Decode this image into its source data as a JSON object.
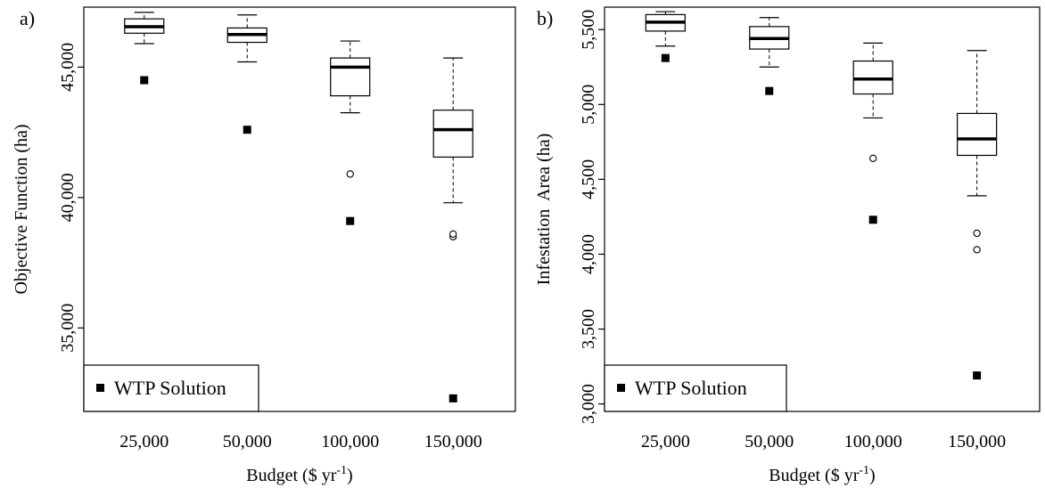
{
  "chart_data": [
    {
      "type": "box",
      "panel_label": "a)",
      "xlabel": "Budget ($ yr",
      "xlabel_sup": "-1",
      "xlabel_close": ")",
      "ylabel": "Objective Function (ha)",
      "categories": [
        "25,000",
        "50,000",
        "100,000",
        "150,000"
      ],
      "ylim": [
        31800,
        47300
      ],
      "yticks": [
        35000,
        40000,
        45000
      ],
      "ytick_labels": [
        "35,000",
        "40,000",
        "45,000"
      ],
      "boxes": [
        {
          "whisker_low": 45900,
          "q1": 46300,
          "median": 46550,
          "q3": 46850,
          "whisker_high": 47100,
          "outliers": []
        },
        {
          "whisker_low": 45200,
          "q1": 45950,
          "median": 46250,
          "q3": 46500,
          "whisker_high": 47000,
          "outliers": []
        },
        {
          "whisker_low": 43250,
          "q1": 43900,
          "median": 45000,
          "q3": 45350,
          "whisker_high": 46000,
          "outliers": [
            40900
          ]
        },
        {
          "whisker_low": 39800,
          "q1": 41550,
          "median": 42600,
          "q3": 43350,
          "whisker_high": 45350,
          "outliers": [
            38500,
            38600
          ]
        }
      ],
      "wtp_solution": [
        44500,
        42600,
        39100,
        32300
      ],
      "legend": {
        "label": "WTP Solution",
        "position": "bottom-left"
      }
    },
    {
      "type": "box",
      "panel_label": "b)",
      "xlabel": "Budget ($ yr",
      "xlabel_sup": "-1",
      "xlabel_close": ")",
      "ylabel": "Infestation  Area (ha)",
      "categories": [
        "25,000",
        "50,000",
        "100,000",
        "150,000"
      ],
      "ylim": [
        2950,
        5650
      ],
      "yticks": [
        3000,
        3500,
        4000,
        4500,
        5000,
        5500
      ],
      "ytick_labels": [
        "3,000",
        "3,500",
        "4,000",
        "4,500",
        "5,000",
        "5,500"
      ],
      "boxes": [
        {
          "whisker_low": 5390,
          "q1": 5490,
          "median": 5550,
          "q3": 5600,
          "whisker_high": 5620,
          "outliers": []
        },
        {
          "whisker_low": 5250,
          "q1": 5370,
          "median": 5440,
          "q3": 5520,
          "whisker_high": 5580,
          "outliers": []
        },
        {
          "whisker_low": 4910,
          "q1": 5070,
          "median": 5170,
          "q3": 5290,
          "whisker_high": 5410,
          "outliers": [
            4640
          ]
        },
        {
          "whisker_low": 4390,
          "q1": 4660,
          "median": 4770,
          "q3": 4940,
          "whisker_high": 5360,
          "outliers": [
            4140,
            4030
          ]
        }
      ],
      "wtp_solution": [
        5310,
        5090,
        4230,
        3190
      ],
      "legend": {
        "label": "WTP Solution",
        "position": "bottom-left"
      }
    }
  ]
}
